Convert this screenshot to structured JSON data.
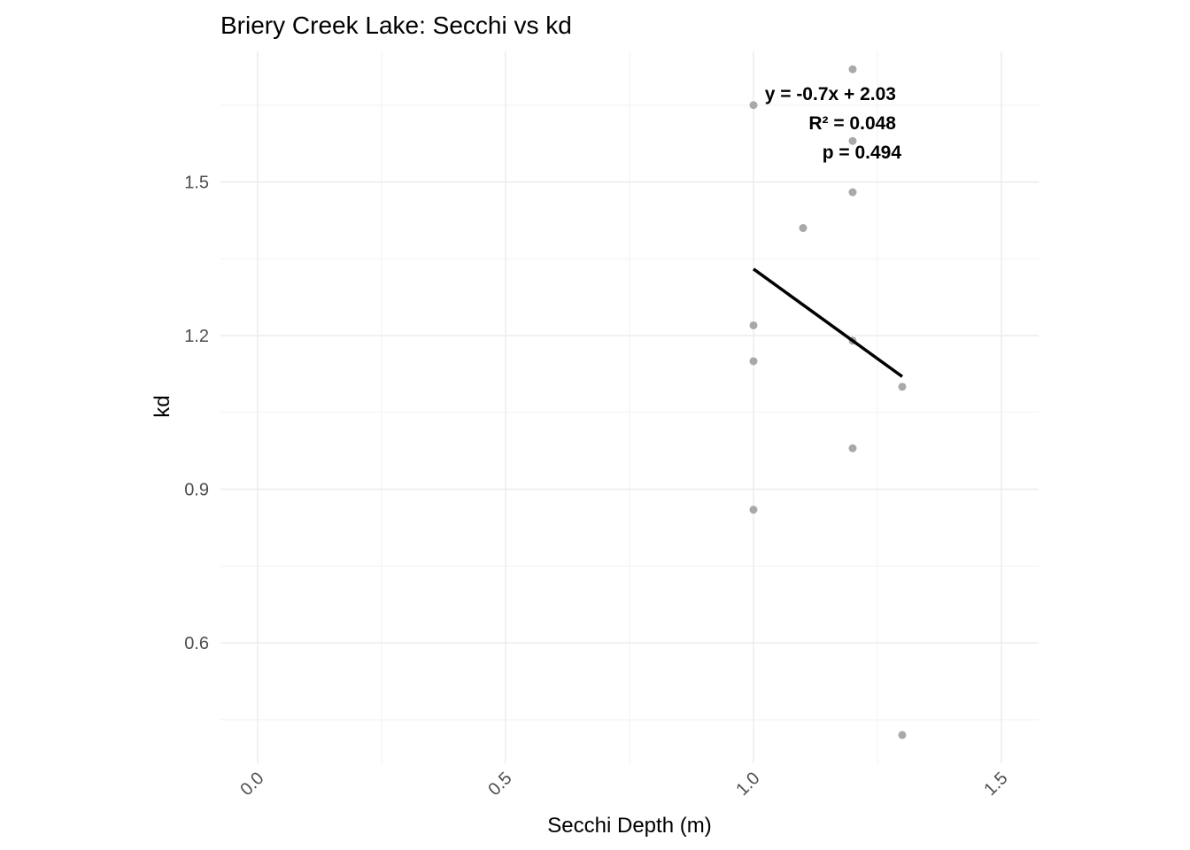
{
  "chart_data": {
    "type": "scatter",
    "title": "Briery Creek Lake: Secchi vs kd",
    "xlabel": "Secchi Depth (m)",
    "ylabel": "kd",
    "xlim": [
      -0.075,
      1.575
    ],
    "ylim": [
      0.365,
      1.755
    ],
    "x_ticks": [
      0.0,
      0.5,
      1.0,
      1.5
    ],
    "x_tick_labels": [
      "0.0",
      "0.5",
      "1.0",
      "1.5"
    ],
    "y_ticks": [
      0.6,
      0.9,
      1.2,
      1.5
    ],
    "y_tick_labels": [
      "0.6",
      "0.9",
      "1.2",
      "1.5"
    ],
    "grid": true,
    "points": [
      {
        "x": 1.0,
        "y": 1.65
      },
      {
        "x": 1.0,
        "y": 1.22
      },
      {
        "x": 1.0,
        "y": 1.15
      },
      {
        "x": 1.0,
        "y": 0.86
      },
      {
        "x": 1.1,
        "y": 1.41
      },
      {
        "x": 1.2,
        "y": 1.72
      },
      {
        "x": 1.2,
        "y": 1.58
      },
      {
        "x": 1.2,
        "y": 1.48
      },
      {
        "x": 1.2,
        "y": 1.19
      },
      {
        "x": 1.2,
        "y": 0.98
      },
      {
        "x": 1.3,
        "y": 1.1
      },
      {
        "x": 1.3,
        "y": 0.42
      }
    ],
    "fit_line": {
      "slope": -0.7,
      "intercept": 2.03,
      "x_range": [
        1.0,
        1.3
      ]
    },
    "annotations": [
      "y = -0.7x + 2.03",
      "R² = 0.048",
      "p = 0.494"
    ],
    "point_color": "#a9a9a9",
    "line_color": "#000000"
  }
}
